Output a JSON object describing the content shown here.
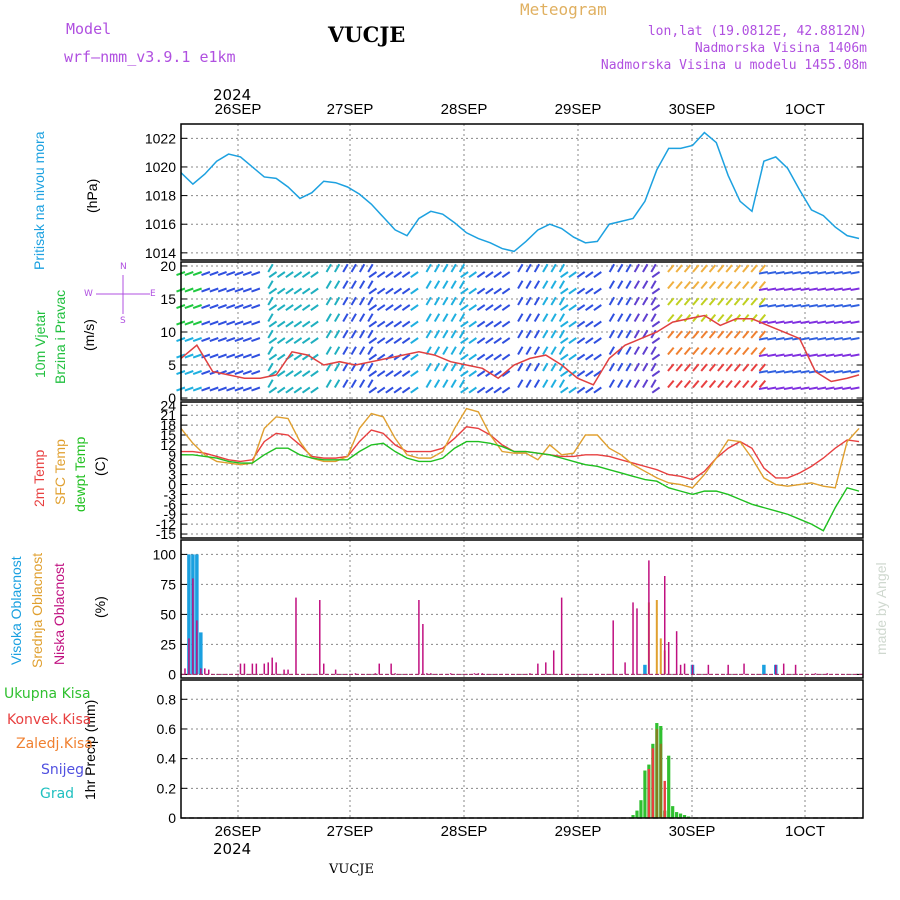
{
  "header": {
    "model_label": "Model",
    "model_name": "wrf–nmm_v3.9.1  e1km",
    "station": "VUCJE",
    "meteogram": "Meteogram",
    "lonlat": "lon,lat (19.0812E, 42.8812N)",
    "altitude": "Nadmorska Visina 1406m",
    "model_altitude": "Nadmorska Visina u modelu 1455.08m",
    "year_top": "2024",
    "year_bottom": "2024",
    "footer_station": "VUCJE",
    "credit": "made by Angel"
  },
  "colors": {
    "pressure": "#1da1e0",
    "wind_title": "#22c040",
    "windspeed_line": "#e04040",
    "t2m": "#e84040",
    "sfc": "#e0a030",
    "dewpt": "#20c020",
    "high": "#1aa0e0",
    "mid": "#e0a030",
    "low": "#c01080",
    "total": "#30c030",
    "conv": "#e84040",
    "frozen": "#f08030",
    "snow": "#5050e0",
    "graup": "#20c0c0",
    "purple": "#b050e0"
  },
  "days": [
    "26SEP",
    "27SEP",
    "28SEP",
    "29SEP",
    "30SEP",
    "1OCT"
  ],
  "panels": {
    "pressure": {
      "label": "Pritisak na nivou mora",
      "unit": "(hPa)",
      "ticks": [
        "1014",
        "1016",
        "1018",
        "1020",
        "1022"
      ]
    },
    "wind": {
      "label1": "10m Vjetar",
      "label2": "Brzina i Pravac",
      "unit": "(m/s)",
      "ticks": [
        "0",
        "5",
        "10",
        "15",
        "20"
      ],
      "compass_n": "N",
      "compass_s": "S",
      "compass_w": "W",
      "compass_e": "E"
    },
    "temp": {
      "label1": "2m Temp",
      "label2": "SFC Temp",
      "label3": "dewpt Temp",
      "unit": "(C)",
      "ticks": [
        "-15",
        "-12",
        "-9",
        "-6",
        "-3",
        "0",
        "3",
        "6",
        "9",
        "12",
        "15",
        "18",
        "21",
        "24"
      ]
    },
    "cloud": {
      "label1": "Visoka Oblacnost",
      "label2": "Srednja Oblacnost",
      "label3": "Niska Oblacnost",
      "unit": "(%)",
      "ticks": [
        "0",
        "25",
        "50",
        "75",
        "100"
      ]
    },
    "precip": {
      "label": "1hr Precip (mm)",
      "legend": [
        "Ukupna Kisa",
        "Konvek.Kisa",
        "Zaledj.Kisa",
        "Snijeg",
        "Grad"
      ],
      "ticks": [
        "0",
        "0.2",
        "0.4",
        "0.6",
        "0.8"
      ]
    }
  },
  "chart_data": [
    {
      "type": "line",
      "title": "Pritisak na nivou mora",
      "ylabel": "(hPa)",
      "ylim": [
        1013.5,
        1023
      ],
      "series": [
        {
          "name": "Pritisak na nivou mora",
          "x": [
            0,
            3,
            6,
            9,
            12,
            15,
            18,
            21,
            24,
            27,
            30,
            33,
            36,
            39,
            42,
            45,
            48,
            51,
            54,
            57,
            60,
            63,
            66,
            69,
            72,
            75,
            78,
            81,
            84,
            87,
            90,
            93,
            96,
            99,
            102,
            105,
            108,
            111,
            114,
            117,
            120,
            123,
            126,
            129,
            132,
            135,
            138,
            141,
            144,
            147,
            150,
            153,
            156,
            159,
            162,
            165,
            168,
            171
          ],
          "values": [
            1019.6,
            1018.8,
            1019.5,
            1020.4,
            1020.9,
            1020.7,
            1020.0,
            1019.3,
            1019.2,
            1018.6,
            1017.8,
            1018.2,
            1019.0,
            1018.9,
            1018.6,
            1018.1,
            1017.4,
            1016.5,
            1015.6,
            1015.2,
            1016.4,
            1016.9,
            1016.7,
            1016.1,
            1015.4,
            1015.0,
            1014.7,
            1014.3,
            1014.1,
            1014.8,
            1015.6,
            1016.0,
            1015.7,
            1015.1,
            1014.7,
            1014.8,
            1016.0,
            1016.2,
            1016.4,
            1017.6,
            1019.8,
            1021.3,
            1021.3,
            1021.5,
            1022.4,
            1021.7,
            1019.4,
            1017.6,
            1016.9,
            1020.4,
            1020.7,
            1019.9,
            1018.4,
            1017.0,
            1016.6,
            1015.8,
            1015.2,
            1015.0
          ]
        }
      ]
    },
    {
      "type": "line",
      "title": "10m Vjetar Brzina i Pravac",
      "ylabel": "(m/s)",
      "ylim": [
        0,
        20.5
      ],
      "series": [
        {
          "name": "10m Vjetar",
          "x": [
            0,
            4,
            8,
            12,
            16,
            20,
            24,
            28,
            32,
            36,
            40,
            44,
            48,
            52,
            56,
            60,
            64,
            68,
            72,
            76,
            80,
            84,
            88,
            92,
            96,
            100,
            104,
            108,
            112,
            116,
            120,
            124,
            128,
            132,
            136,
            140,
            144,
            148,
            152,
            156,
            160,
            164,
            168,
            171
          ],
          "values": [
            6,
            8,
            4,
            3.5,
            3,
            3,
            3.5,
            7,
            6.5,
            5,
            5.5,
            5,
            5.5,
            6,
            6.5,
            7,
            6.5,
            5.5,
            5,
            4.5,
            3,
            5,
            6,
            6.5,
            5,
            3,
            2,
            6,
            8,
            9,
            10,
            11.5,
            12,
            12.5,
            11,
            12,
            12,
            11,
            10,
            9,
            4,
            2.5,
            3,
            3.5
          ]
        }
      ]
    },
    {
      "type": "line",
      "title": "2m Temp / SFC Temp / dewpt Temp",
      "ylabel": "(C)",
      "ylim": [
        -16,
        25
      ],
      "x": [
        0,
        3,
        6,
        9,
        12,
        15,
        18,
        21,
        24,
        27,
        30,
        33,
        36,
        39,
        42,
        45,
        48,
        51,
        54,
        57,
        60,
        63,
        66,
        69,
        72,
        75,
        78,
        81,
        84,
        87,
        90,
        93,
        96,
        99,
        102,
        105,
        108,
        111,
        114,
        117,
        120,
        123,
        126,
        129,
        132,
        135,
        138,
        141,
        144,
        147,
        150,
        153,
        156,
        159,
        162,
        165,
        168,
        171
      ],
      "series": [
        {
          "name": "2m Temp",
          "values": [
            10,
            10,
            9.5,
            8.5,
            7.5,
            7,
            7.5,
            13,
            15.5,
            15,
            12,
            8.5,
            8,
            8,
            8.5,
            13,
            16.5,
            15.5,
            12,
            10,
            10,
            10,
            11,
            14,
            17.5,
            17,
            15,
            12,
            10,
            10,
            9.5,
            9,
            8.5,
            8.5,
            9,
            9,
            8.5,
            7.5,
            6.5,
            5.5,
            4.5,
            3,
            2.5,
            1.5,
            4,
            8,
            11,
            13,
            11,
            5,
            2,
            2,
            3.5,
            5.5,
            8,
            11,
            13.5,
            13
          ]
        },
        {
          "name": "SFC Temp",
          "values": [
            17,
            12.5,
            9,
            7,
            6.5,
            6,
            6.5,
            17,
            20.5,
            20,
            13,
            8,
            7,
            7,
            8.5,
            17,
            21.5,
            20.5,
            14,
            9,
            8,
            8,
            10,
            17,
            23,
            22,
            15,
            10,
            9.5,
            9.5,
            7.5,
            12,
            9,
            9.5,
            15,
            15,
            11,
            9,
            6,
            4,
            2,
            0.5,
            0,
            -1,
            3,
            8,
            13.5,
            13,
            8,
            2,
            0,
            -0.5,
            0,
            0.5,
            -0.5,
            -1,
            13,
            17
          ]
        },
        {
          "name": "dewpt Temp",
          "values": [
            9,
            9,
            8.5,
            8,
            7,
            6.5,
            6.5,
            9,
            11,
            11,
            9,
            8,
            7.5,
            7.5,
            7.5,
            10,
            12,
            12.5,
            10,
            8,
            7,
            7,
            8,
            11,
            13,
            13,
            12.5,
            11.5,
            10,
            10,
            9.5,
            9,
            8,
            7,
            6,
            5.5,
            4.5,
            3.5,
            2.5,
            1.5,
            1,
            -1,
            -2,
            -3,
            -2,
            -2,
            -3,
            -4.5,
            -6,
            -7,
            -8,
            -9,
            -10.5,
            -12,
            -14,
            -7,
            -1,
            -2
          ]
        }
      ]
    },
    {
      "type": "bar",
      "title": "Oblacnost",
      "ylabel": "(%)",
      "ylim": [
        0,
        110
      ],
      "series": [
        {
          "name": "Visoka Oblacnost",
          "x": [
            2,
            3,
            4,
            5,
            117,
            129,
            147,
            150
          ],
          "values": [
            100,
            100,
            100,
            35,
            8,
            8,
            8,
            8
          ]
        },
        {
          "name": "Srednja Oblacnost",
          "x": [
            118,
            120,
            121,
            122
          ],
          "values": [
            60,
            62,
            30,
            20
          ]
        },
        {
          "name": "Niska Oblacnost",
          "x": [
            1,
            2,
            3,
            4,
            5,
            6,
            7,
            15,
            16,
            18,
            19,
            21,
            22,
            23,
            24,
            26,
            27,
            29,
            35,
            36,
            39,
            44,
            49,
            50,
            53,
            54,
            60,
            61,
            62,
            63,
            68,
            74,
            75,
            76,
            88,
            90,
            92,
            94,
            96,
            109,
            112,
            114,
            115,
            118,
            122,
            123,
            125,
            126,
            127,
            129,
            133,
            138,
            142,
            150,
            152,
            155,
            160,
            163
          ],
          "values": [
            5,
            30,
            80,
            45,
            5,
            5,
            4,
            9,
            9,
            9,
            9,
            9,
            10,
            14,
            10,
            4,
            4,
            64,
            62,
            9,
            4,
            1,
            1,
            9,
            9,
            1,
            62,
            42,
            1,
            1,
            1,
            1,
            1,
            1,
            1,
            9,
            10,
            20,
            64,
            45,
            10,
            60,
            55,
            95,
            82,
            27,
            36,
            8,
            9,
            8,
            8,
            8,
            9,
            8,
            9,
            8,
            1,
            1
          ]
        }
      ]
    },
    {
      "type": "bar",
      "title": "1hr Precip",
      "ylabel": "1hr Precip (mm)",
      "ylim": [
        0,
        0.9
      ],
      "series": [
        {
          "name": "Ukupna Kisa",
          "x": [
            114,
            115,
            116,
            117,
            118,
            119,
            120,
            121,
            122,
            123,
            124,
            125,
            126,
            127,
            128
          ],
          "values": [
            0.02,
            0.05,
            0.12,
            0.32,
            0.36,
            0.5,
            0.64,
            0.62,
            0.05,
            0.42,
            0.08,
            0.04,
            0.03,
            0.02,
            0.01
          ]
        },
        {
          "name": "Konvek.Kisa",
          "x": [
            118,
            119,
            120,
            122
          ],
          "values": [
            0.33,
            0.47,
            0.6,
            0.25
          ]
        },
        {
          "name": "Zaledj.Kisa",
          "x": [
            120,
            121
          ],
          "values": [
            0.6,
            0.5
          ]
        }
      ]
    }
  ]
}
